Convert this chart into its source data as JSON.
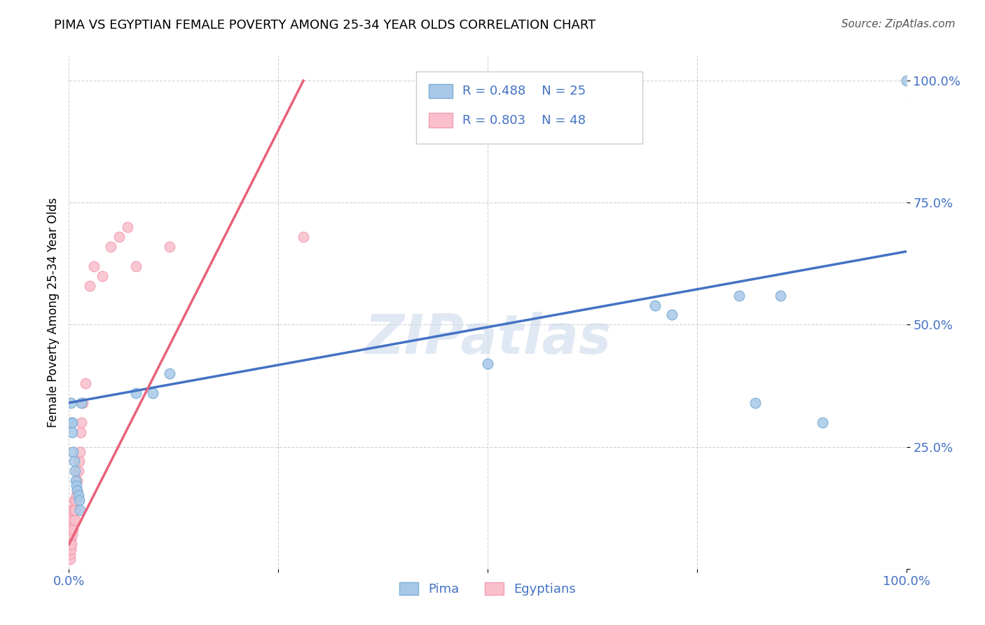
{
  "title": "PIMA VS EGYPTIAN FEMALE POVERTY AMONG 25-34 YEAR OLDS CORRELATION CHART",
  "source": "Source: ZipAtlas.com",
  "ylabel": "Female Poverty Among 25-34 Year Olds",
  "watermark": "ZIPatlas",
  "pima_color": "#a8c8e8",
  "pima_edge_color": "#7bafd4",
  "egyptian_color": "#f9bfcc",
  "egyptian_edge_color": "#f4a0b5",
  "pima_line_color": "#4472c4",
  "egyptian_line_color": "#e8627a",
  "legend_r_pima": "R = 0.488",
  "legend_n_pima": "N = 25",
  "legend_r_egyptian": "R = 0.803",
  "legend_n_egyptian": "N = 48",
  "axis_label_color": "#4472c4",
  "grid_color": "#cccccc",
  "pima_scatter_x": [
    0.002,
    0.003,
    0.004,
    0.004,
    0.005,
    0.006,
    0.007,
    0.008,
    0.009,
    0.01,
    0.011,
    0.012,
    0.013,
    0.015,
    0.08,
    0.1,
    0.12,
    0.5,
    0.7,
    0.72,
    0.8,
    0.82,
    0.85,
    0.9,
    1.0
  ],
  "pima_scatter_y": [
    0.34,
    0.3,
    0.3,
    0.28,
    0.24,
    0.22,
    0.2,
    0.18,
    0.17,
    0.16,
    0.15,
    0.14,
    0.12,
    0.34,
    0.36,
    0.36,
    0.4,
    0.42,
    0.54,
    0.52,
    0.56,
    0.34,
    0.56,
    0.3,
    1.0
  ],
  "egyptian_scatter_x": [
    0.001,
    0.001,
    0.001,
    0.001,
    0.001,
    0.001,
    0.001,
    0.001,
    0.001,
    0.001,
    0.001,
    0.002,
    0.002,
    0.002,
    0.002,
    0.003,
    0.003,
    0.003,
    0.004,
    0.004,
    0.004,
    0.005,
    0.005,
    0.005,
    0.006,
    0.006,
    0.007,
    0.007,
    0.008,
    0.009,
    0.01,
    0.01,
    0.011,
    0.012,
    0.013,
    0.014,
    0.015,
    0.016,
    0.02,
    0.025,
    0.03,
    0.04,
    0.05,
    0.06,
    0.07,
    0.08,
    0.12,
    0.28
  ],
  "egyptian_scatter_y": [
    0.02,
    0.03,
    0.04,
    0.05,
    0.06,
    0.07,
    0.08,
    0.09,
    0.1,
    0.11,
    0.12,
    0.04,
    0.06,
    0.08,
    0.09,
    0.05,
    0.08,
    0.1,
    0.07,
    0.09,
    0.11,
    0.08,
    0.1,
    0.12,
    0.12,
    0.14,
    0.1,
    0.12,
    0.14,
    0.15,
    0.16,
    0.18,
    0.2,
    0.22,
    0.24,
    0.28,
    0.3,
    0.34,
    0.38,
    0.58,
    0.62,
    0.6,
    0.66,
    0.68,
    0.7,
    0.62,
    0.66,
    0.68
  ],
  "pima_line_x0": 0.0,
  "pima_line_y0": 0.34,
  "pima_line_x1": 1.0,
  "pima_line_y1": 0.65,
  "egyptian_line_x0": 0.0,
  "egyptian_line_y0": 0.05,
  "egyptian_line_x1": 0.28,
  "egyptian_line_y1": 1.0,
  "xlim": [
    0.0,
    1.0
  ],
  "ylim": [
    0.0,
    1.05
  ],
  "xticks": [
    0.0,
    0.25,
    0.5,
    0.75,
    1.0
  ],
  "xticklabels": [
    "0.0%",
    "",
    "",
    "",
    "100.0%"
  ],
  "yticks": [
    0.0,
    0.25,
    0.5,
    0.75,
    1.0
  ],
  "yticklabels": [
    "",
    "25.0%",
    "50.0%",
    "75.0%",
    "100.0%"
  ]
}
